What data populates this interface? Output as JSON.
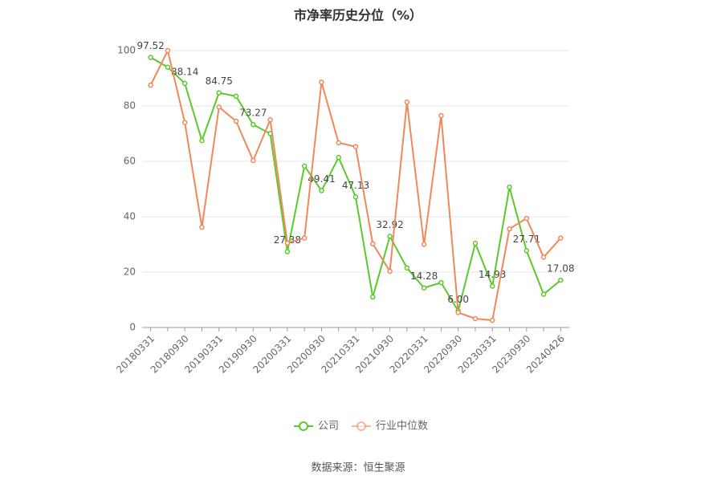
{
  "chart_data": {
    "type": "line",
    "title": "市净率历史分位（%）",
    "source": "数据来源：恒生聚源",
    "categories": [
      "20180331",
      null,
      "20180930",
      null,
      "20190331",
      null,
      "20190930",
      null,
      "20200331",
      null,
      "20200930",
      null,
      "20210331",
      null,
      "20210930",
      null,
      "20220331",
      null,
      "20220930",
      null,
      "20230331",
      null,
      "20230930",
      null,
      "20240426"
    ],
    "series": [
      {
        "name": "公司",
        "color": "#5cc92b",
        "values": [
          97.52,
          94,
          88.14,
          67.5,
          84.75,
          83.5,
          73.27,
          70,
          27.38,
          58.3,
          49.41,
          61.4,
          47.13,
          11,
          32.92,
          21.5,
          14.28,
          16.2,
          6.0,
          30.4,
          14.93,
          50.7,
          27.71,
          12,
          17.08
        ],
        "value_labels": [
          "97.52",
          null,
          "88.14",
          null,
          "84.75",
          null,
          "73.27",
          null,
          "27.38",
          null,
          "49.41",
          null,
          "47.13",
          null,
          "32.92",
          null,
          "14.28",
          null,
          "6.00",
          null,
          "14.93",
          null,
          "27.71",
          null,
          "17.08"
        ]
      },
      {
        "name": "行业中位数",
        "color": "#f0895a",
        "values": [
          87.5,
          100,
          74,
          36.2,
          79.6,
          74.5,
          60.3,
          75,
          30.5,
          32.3,
          88.6,
          66.7,
          65.3,
          30.2,
          20.3,
          81.4,
          30,
          76.5,
          5.4,
          3.2,
          2.6,
          35.6,
          39.4,
          25.4,
          32.3
        ]
      }
    ],
    "ylim": [
      0,
      100
    ],
    "yticks": [
      0,
      20,
      40,
      60,
      80,
      100
    ],
    "grid": true
  }
}
